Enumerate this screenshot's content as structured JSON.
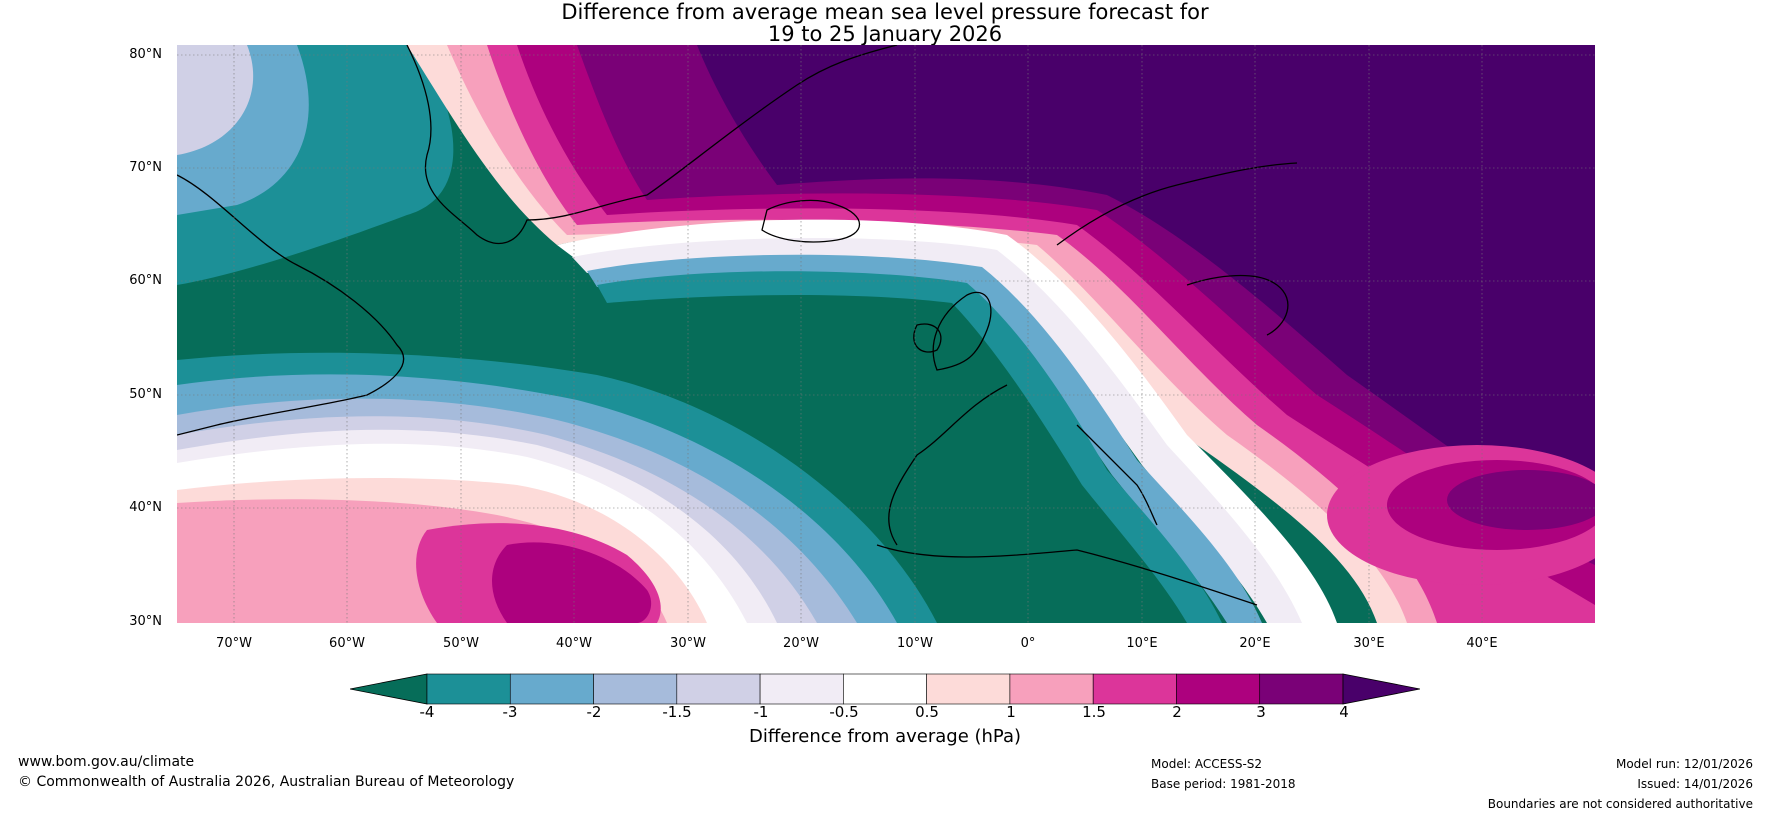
{
  "title": {
    "line1": "Difference from average mean sea level pressure forecast for",
    "line2": "19 to 25 January 2026"
  },
  "map": {
    "lat_labels": [
      "80°N",
      "70°N",
      "60°N",
      "50°N",
      "40°N",
      "30°N"
    ],
    "lon_labels": [
      "70°W",
      "60°W",
      "50°W",
      "40°W",
      "30°W",
      "20°W",
      "10°W",
      "0°",
      "10°E",
      "20°E",
      "30°E",
      "40°E"
    ]
  },
  "colorbar": {
    "ticks": [
      "-4",
      "-3",
      "-2",
      "-1.5",
      "-1",
      "-0.5",
      "0.5",
      "1",
      "1.5",
      "2",
      "3",
      "4"
    ],
    "colors": [
      "#066d59",
      "#1c9097",
      "#67aacd",
      "#a6bbdb",
      "#d0d0e6",
      "#f1ecf5",
      "#ffffff",
      "#fddbd9",
      "#f7a0bc",
      "#dc359a",
      "#ad017e",
      "#7a0177",
      "#49006a"
    ],
    "label": "Difference from average (hPa)"
  },
  "footer": {
    "website": "www.bom.gov.au/climate",
    "copyright": "© Commonwealth of Australia 2026, Australian Bureau of Meteorology",
    "model": "Model: ACCESS-S2",
    "base_period": "Base period: 1981-2018",
    "model_run": "Model run: 12/01/2026",
    "issued": "Issued: 14/01/2026",
    "disclaimer": "Boundaries are not considered authoritative"
  }
}
